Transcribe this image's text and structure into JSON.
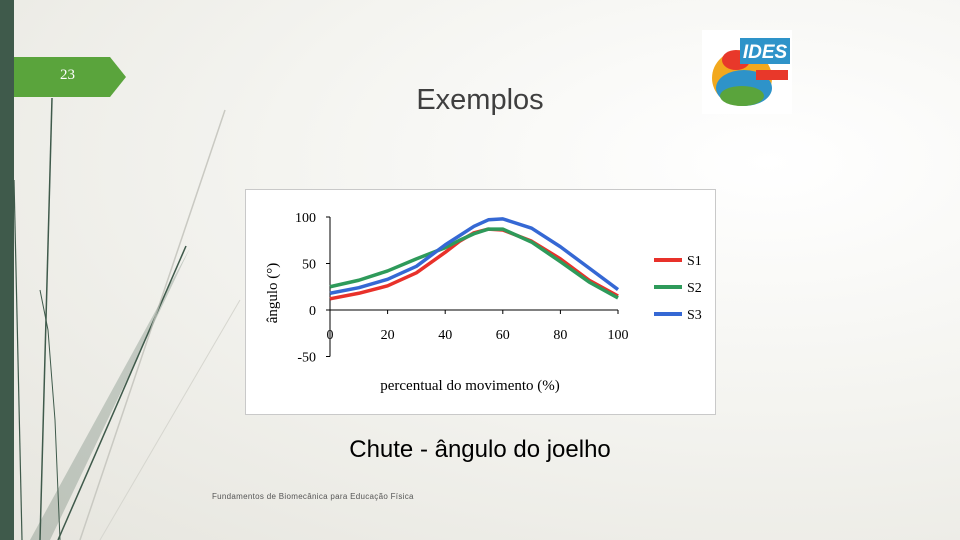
{
  "slide": {
    "number": "23",
    "title": "Exemplos",
    "caption": "Chute - ângulo do joelho",
    "footer": "Fundamentos de Biomecânica para Educação Física"
  },
  "logo": {
    "text": "IDES",
    "colors": [
      "#e8382a",
      "#f2a81d",
      "#2e93c9",
      "#5aa43c"
    ]
  },
  "colors": {
    "left_bar": "#3f5a4b",
    "tab": "#5aa43c"
  },
  "chart_data": {
    "type": "line",
    "xlabel": "percentual do movimento (%)",
    "ylabel": "ângulo (°)",
    "xlim": [
      0,
      100
    ],
    "ylim": [
      -50,
      100
    ],
    "xticks": [
      0,
      20,
      40,
      60,
      80,
      100
    ],
    "yticks": [
      100,
      50,
      0,
      -50
    ],
    "grid": false,
    "legend_position": "right",
    "x": [
      0,
      10,
      20,
      30,
      40,
      45,
      50,
      55,
      60,
      70,
      80,
      90,
      100
    ],
    "series": [
      {
        "name": "S1",
        "color": "#e8312a",
        "values": [
          12,
          18,
          26,
          40,
          62,
          74,
          83,
          87,
          86,
          74,
          55,
          32,
          15
        ]
      },
      {
        "name": "S2",
        "color": "#2e9a5a",
        "values": [
          25,
          32,
          42,
          55,
          67,
          75,
          82,
          87,
          87,
          73,
          52,
          30,
          13
        ]
      },
      {
        "name": "S3",
        "color": "#3568d4",
        "values": [
          18,
          24,
          33,
          47,
          70,
          80,
          90,
          97,
          98,
          88,
          68,
          45,
          22
        ]
      }
    ]
  }
}
